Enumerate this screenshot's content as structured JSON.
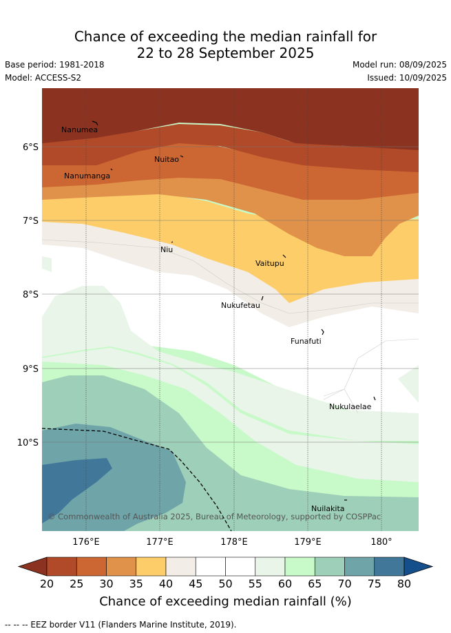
{
  "title_line1": "Chance of exceeding the median rainfall for",
  "title_line2": "22 to 28 September 2025",
  "base_period": "Base period: 1981-2018",
  "model": "Model: ACCESS-S2",
  "model_run": "Model run: 08/09/2025",
  "issued": "Issued: 10/09/2025",
  "lat_ticks": [
    "6°S",
    "7°S",
    "8°S",
    "9°S",
    "10°S"
  ],
  "lon_ticks": [
    "176°E",
    "177°E",
    "178°E",
    "179°E",
    "180°"
  ],
  "places": [
    "Nanumea",
    "Nuitao",
    "Nanumanga",
    "Niu",
    "Vaitupu",
    "Nukufetau",
    "Funafuti",
    "Nukulaelae",
    "Nuilakita"
  ],
  "copyright": "© Commonwealth of Australia 2025, Bureau of Meteorology, supported by COSPPac",
  "colorbar": {
    "ticks": [
      "20",
      "25",
      "30",
      "35",
      "40",
      "45",
      "50",
      "55",
      "60",
      "65",
      "70",
      "75",
      "80"
    ],
    "label": "Chance of exceeding median rainfall (%)",
    "colors": [
      "#8b3320",
      "#b04a28",
      "#cc6633",
      "#e0924a",
      "#fdcd6a",
      "#f2ede6",
      "#ffffff",
      "#ffffff",
      "#e9f5e9",
      "#c8f9c8",
      "#9ecfb8",
      "#6fa4a9",
      "#41789a",
      "#154f8b"
    ]
  },
  "footnote": "-- -- -- EEZ border V11 (Flanders Marine Institute, 2019)."
}
